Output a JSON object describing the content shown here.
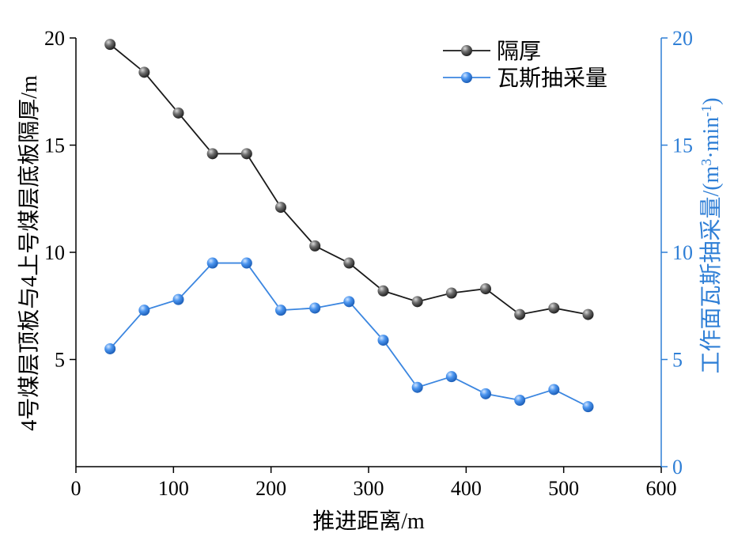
{
  "chart_data": {
    "type": "line",
    "xlabel": "推进距离/m",
    "ylabel": "4号煤层顶板与4上号煤层底板隔厚/m",
    "ylabel_right": "工作面瓦斯抽采量/(m3·min-1)",
    "ylabel_right_parts": {
      "base": "工作面瓦斯抽采量/(m",
      "sup1": "3",
      "mid": "·min",
      "sup2": "-1",
      "end": ")"
    },
    "xlim": [
      0,
      600
    ],
    "ylim": [
      0,
      20
    ],
    "ylim_right": [
      0,
      20
    ],
    "x_ticks": [
      0,
      100,
      200,
      300,
      400,
      500,
      600
    ],
    "y_ticks": [
      5,
      10,
      15,
      20
    ],
    "y_ticks_right": [
      0,
      5,
      10,
      15,
      20
    ],
    "legend_position": "top-right",
    "colors": {
      "left_axis": "#000000",
      "right_axis": "#2f7fd6"
    },
    "series": [
      {
        "name": "隔厚",
        "axis": "left",
        "color": "#1a1a1a",
        "marker_color": "#5a5a5a",
        "x": [
          35,
          70,
          105,
          140,
          175,
          210,
          245,
          280,
          315,
          350,
          385,
          420,
          455,
          490,
          525
        ],
        "values": [
          19.7,
          18.4,
          16.5,
          14.6,
          14.6,
          12.1,
          10.3,
          9.5,
          8.2,
          7.7,
          8.1,
          8.3,
          7.1,
          7.4,
          7.1
        ]
      },
      {
        "name": "瓦斯抽采量",
        "axis": "right",
        "color": "#3b86e0",
        "marker_color": "#4a93ee",
        "x": [
          35,
          70,
          105,
          140,
          175,
          210,
          245,
          280,
          315,
          350,
          385,
          420,
          455,
          490,
          525
        ],
        "values": [
          5.5,
          7.3,
          7.8,
          9.5,
          9.5,
          7.3,
          7.4,
          7.7,
          5.9,
          3.7,
          4.2,
          3.4,
          3.1,
          3.6,
          2.8
        ]
      }
    ]
  }
}
